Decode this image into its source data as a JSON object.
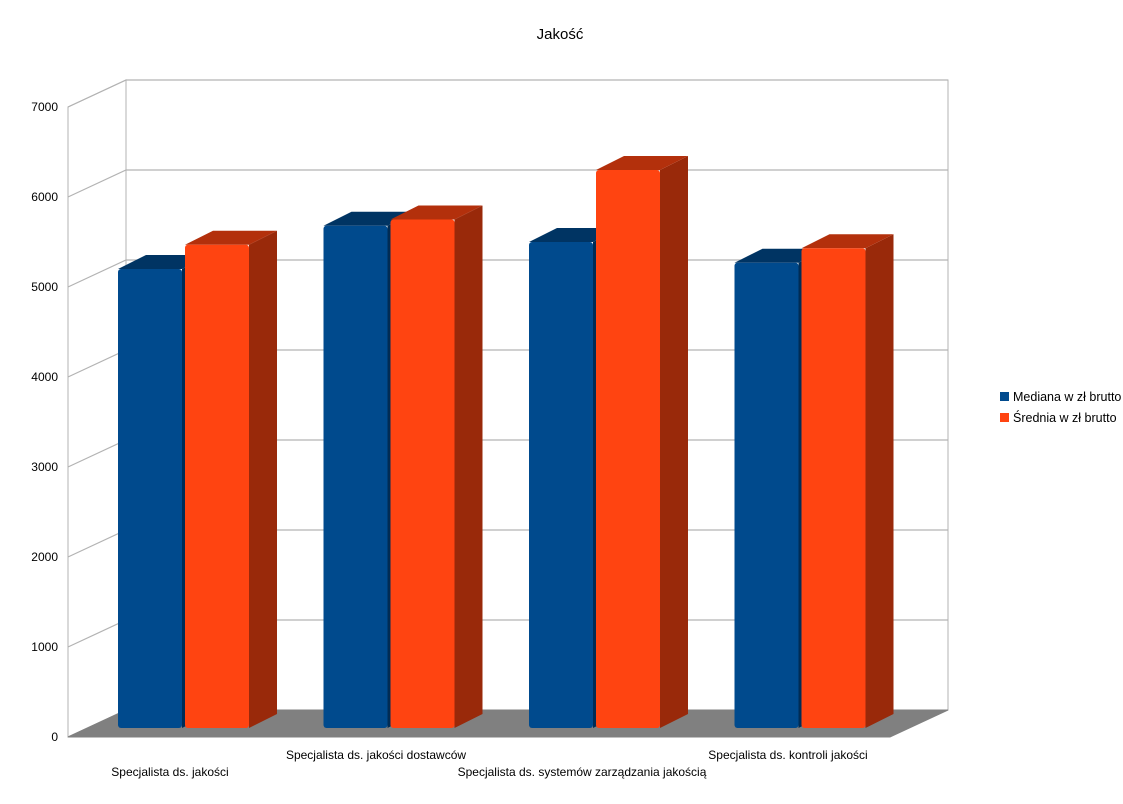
{
  "chart_data": {
    "type": "bar",
    "title": "Jakość",
    "xlabel": "",
    "ylabel": "",
    "ylim": [
      0,
      7000
    ],
    "yticks": [
      0,
      1000,
      2000,
      3000,
      4000,
      5000,
      6000,
      7000
    ],
    "categories": [
      "Specjalista ds. jakości",
      "Specjalista ds. jakości dostawców",
      "Specjalista ds. systemów zarządzania jakością",
      "Specjalista ds. kontroli jakości"
    ],
    "series": [
      {
        "name": "Mediana w zł brutto",
        "color": "#004a8d",
        "values": [
          5100,
          5580,
          5400,
          5170
        ]
      },
      {
        "name": "Średnia w zł brutto",
        "color": "#ff4411",
        "values": [
          5370,
          5650,
          6200,
          5330
        ]
      }
    ],
    "grid": true,
    "legend_position": "right",
    "style": "3d-columns"
  }
}
